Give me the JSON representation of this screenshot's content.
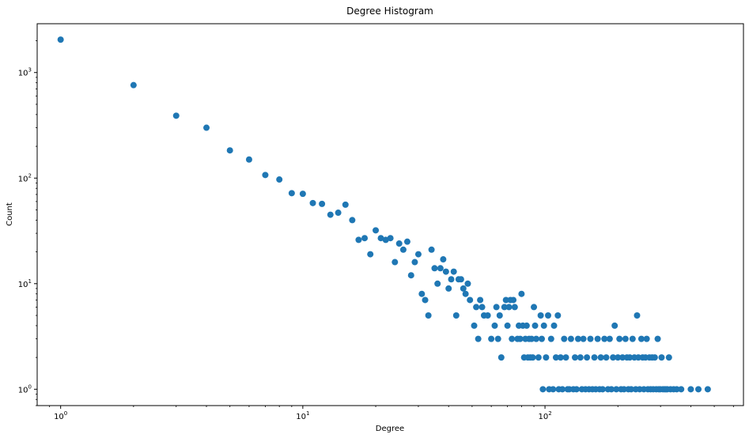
{
  "chart_data": {
    "type": "scatter",
    "title": "Degree Histogram",
    "xlabel": "Degree",
    "ylabel": "Count",
    "xscale": "log",
    "yscale": "log",
    "xlim": [
      0.8,
      660
    ],
    "ylim": [
      0.7,
      2900
    ],
    "grid": false,
    "legend": "none",
    "marker_color": "#1f77b4",
    "x_ticks": [
      {
        "value": 1,
        "base": "10",
        "exp": "0"
      },
      {
        "value": 10,
        "base": "10",
        "exp": "1"
      },
      {
        "value": 100,
        "base": "10",
        "exp": "2"
      }
    ],
    "y_ticks": [
      {
        "value": 1,
        "base": "10",
        "exp": "0"
      },
      {
        "value": 10,
        "base": "10",
        "exp": "1"
      },
      {
        "value": 100,
        "base": "10",
        "exp": "2"
      },
      {
        "value": 1000,
        "base": "10",
        "exp": "3"
      }
    ],
    "points": [
      [
        1,
        2050
      ],
      [
        2,
        760
      ],
      [
        3,
        390
      ],
      [
        4,
        300
      ],
      [
        5,
        183
      ],
      [
        6,
        150
      ],
      [
        7,
        107
      ],
      [
        8,
        97
      ],
      [
        9,
        72
      ],
      [
        10,
        71
      ],
      [
        11,
        58
      ],
      [
        12,
        57
      ],
      [
        13,
        45
      ],
      [
        14,
        47
      ],
      [
        15,
        56
      ],
      [
        16,
        40
      ],
      [
        17,
        26
      ],
      [
        18,
        27
      ],
      [
        19,
        19
      ],
      [
        20,
        32
      ],
      [
        21,
        27
      ],
      [
        22,
        26
      ],
      [
        23,
        27
      ],
      [
        24,
        16
      ],
      [
        25,
        24
      ],
      [
        26,
        21
      ],
      [
        27,
        25
      ],
      [
        28,
        12
      ],
      [
        29,
        16
      ],
      [
        30,
        19
      ],
      [
        31,
        8
      ],
      [
        32,
        7
      ],
      [
        33,
        5
      ],
      [
        34,
        21
      ],
      [
        35,
        14
      ],
      [
        36,
        10
      ],
      [
        37,
        14
      ],
      [
        38,
        17
      ],
      [
        39,
        13
      ],
      [
        40,
        9
      ],
      [
        41,
        11
      ],
      [
        42,
        13
      ],
      [
        43,
        5
      ],
      [
        44,
        11
      ],
      [
        45,
        11
      ],
      [
        46,
        9
      ],
      [
        47,
        8
      ],
      [
        48,
        10
      ],
      [
        49,
        7
      ],
      [
        51,
        4
      ],
      [
        52,
        6
      ],
      [
        53,
        3
      ],
      [
        54,
        7
      ],
      [
        55,
        6
      ],
      [
        56,
        5
      ],
      [
        58,
        5
      ],
      [
        60,
        3
      ],
      [
        62,
        4
      ],
      [
        63,
        6
      ],
      [
        64,
        3
      ],
      [
        65,
        5
      ],
      [
        66,
        2
      ],
      [
        68,
        6
      ],
      [
        69,
        7
      ],
      [
        70,
        4
      ],
      [
        71,
        6
      ],
      [
        72,
        7
      ],
      [
        73,
        3
      ],
      [
        74,
        7
      ],
      [
        75,
        6
      ],
      [
        77,
        3
      ],
      [
        78,
        4
      ],
      [
        79,
        3
      ],
      [
        80,
        8
      ],
      [
        81,
        4
      ],
      [
        82,
        2
      ],
      [
        83,
        3
      ],
      [
        84,
        4
      ],
      [
        85,
        2
      ],
      [
        86,
        3
      ],
      [
        87,
        2
      ],
      [
        88,
        3
      ],
      [
        89,
        2
      ],
      [
        90,
        6
      ],
      [
        91,
        4
      ],
      [
        92,
        3
      ],
      [
        94,
        2
      ],
      [
        96,
        5
      ],
      [
        97,
        3
      ],
      [
        98,
        1
      ],
      [
        99,
        4
      ],
      [
        101,
        2
      ],
      [
        103,
        5
      ],
      [
        104,
        1
      ],
      [
        106,
        3
      ],
      [
        108,
        1
      ],
      [
        109,
        4
      ],
      [
        111,
        2
      ],
      [
        113,
        5
      ],
      [
        114,
        1
      ],
      [
        116,
        2
      ],
      [
        118,
        1
      ],
      [
        120,
        3
      ],
      [
        122,
        2
      ],
      [
        124,
        1
      ],
      [
        126,
        1
      ],
      [
        128,
        3
      ],
      [
        131,
        1
      ],
      [
        133,
        2
      ],
      [
        135,
        1
      ],
      [
        137,
        3
      ],
      [
        140,
        2
      ],
      [
        142,
        1
      ],
      [
        144,
        3
      ],
      [
        147,
        1
      ],
      [
        149,
        2
      ],
      [
        152,
        1
      ],
      [
        154,
        3
      ],
      [
        157,
        1
      ],
      [
        160,
        2
      ],
      [
        162,
        1
      ],
      [
        165,
        3
      ],
      [
        168,
        1
      ],
      [
        170,
        2
      ],
      [
        173,
        1
      ],
      [
        176,
        3
      ],
      [
        179,
        2
      ],
      [
        182,
        1
      ],
      [
        185,
        3
      ],
      [
        188,
        1
      ],
      [
        191,
        2
      ],
      [
        194,
        4
      ],
      [
        197,
        1
      ],
      [
        200,
        2
      ],
      [
        203,
        3
      ],
      [
        206,
        1
      ],
      [
        209,
        2
      ],
      [
        212,
        1
      ],
      [
        215,
        3
      ],
      [
        218,
        2
      ],
      [
        221,
        1
      ],
      [
        224,
        2
      ],
      [
        227,
        1
      ],
      [
        230,
        3
      ],
      [
        234,
        2
      ],
      [
        237,
        1
      ],
      [
        240,
        5
      ],
      [
        243,
        2
      ],
      [
        246,
        1
      ],
      [
        250,
        3
      ],
      [
        253,
        2
      ],
      [
        256,
        1
      ],
      [
        260,
        2
      ],
      [
        263,
        3
      ],
      [
        266,
        1
      ],
      [
        270,
        2
      ],
      [
        273,
        1
      ],
      [
        277,
        2
      ],
      [
        280,
        1
      ],
      [
        284,
        2
      ],
      [
        288,
        1
      ],
      [
        292,
        3
      ],
      [
        295,
        1
      ],
      [
        299,
        1
      ],
      [
        303,
        2
      ],
      [
        307,
        1
      ],
      [
        312,
        1
      ],
      [
        316,
        1
      ],
      [
        320,
        1
      ],
      [
        325,
        2
      ],
      [
        330,
        1
      ],
      [
        340,
        1
      ],
      [
        350,
        1
      ],
      [
        365,
        1
      ],
      [
        400,
        1
      ],
      [
        430,
        1
      ],
      [
        470,
        1
      ]
    ]
  }
}
